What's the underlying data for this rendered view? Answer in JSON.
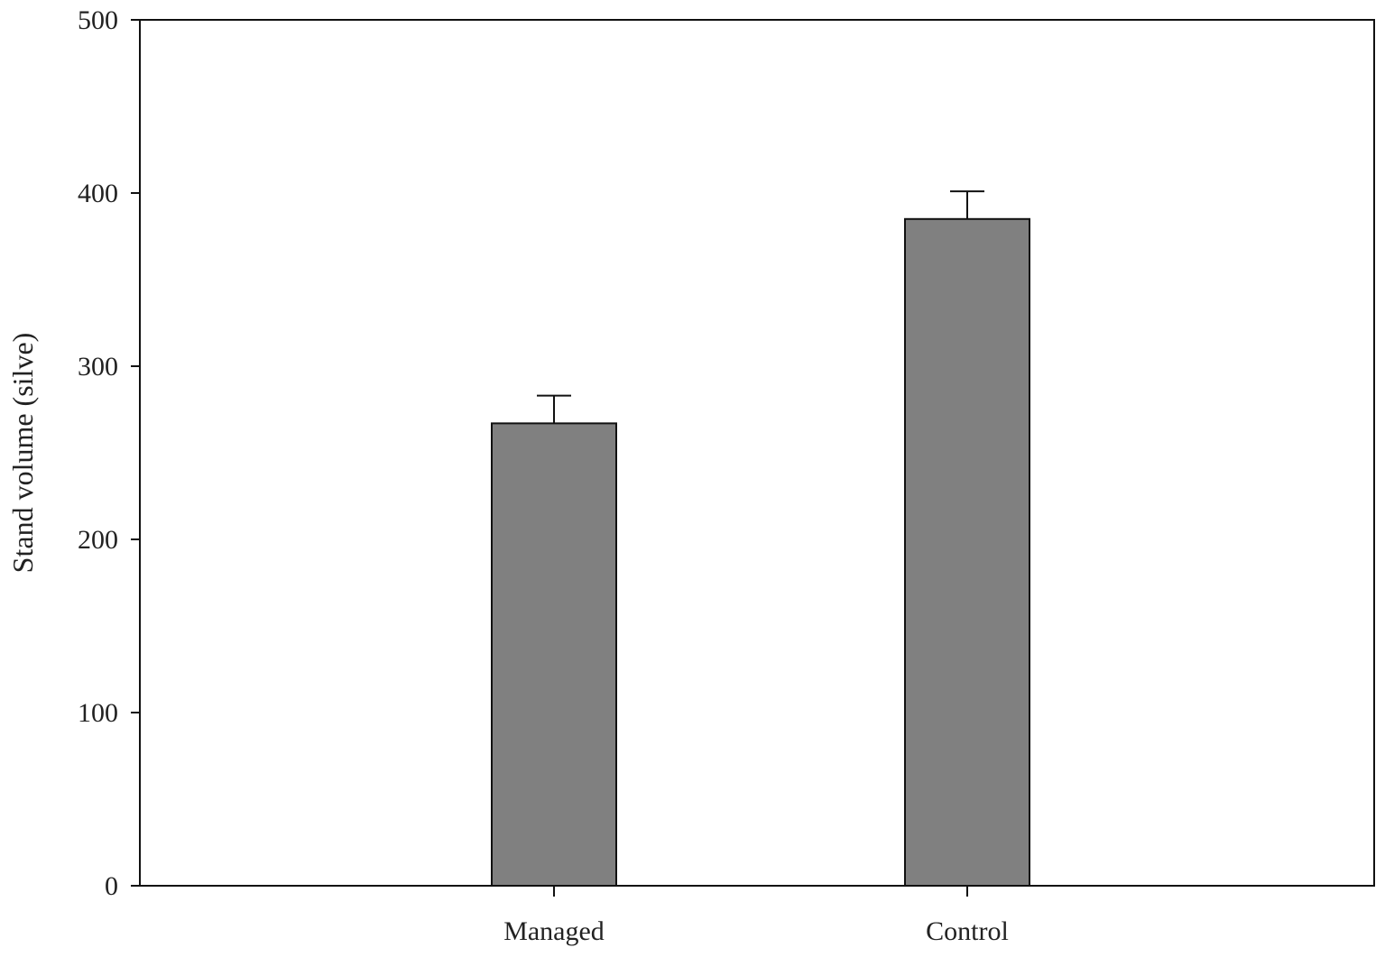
{
  "chart_data": {
    "type": "bar",
    "categories": [
      "Managed",
      "Control"
    ],
    "series": [
      {
        "values": [
          267,
          385
        ],
        "errors": [
          16,
          16
        ]
      }
    ],
    "title": "",
    "xlabel": "",
    "ylabel": "Stand volume (silve)",
    "ylim": [
      0,
      500
    ],
    "yticks": [
      0,
      100,
      200,
      300,
      400,
      500
    ],
    "grid": false,
    "legend": "none",
    "colors": {
      "bar_fill": "#808080",
      "bar_stroke": "#111111",
      "axis": "#111111",
      "text": "#222222"
    }
  }
}
